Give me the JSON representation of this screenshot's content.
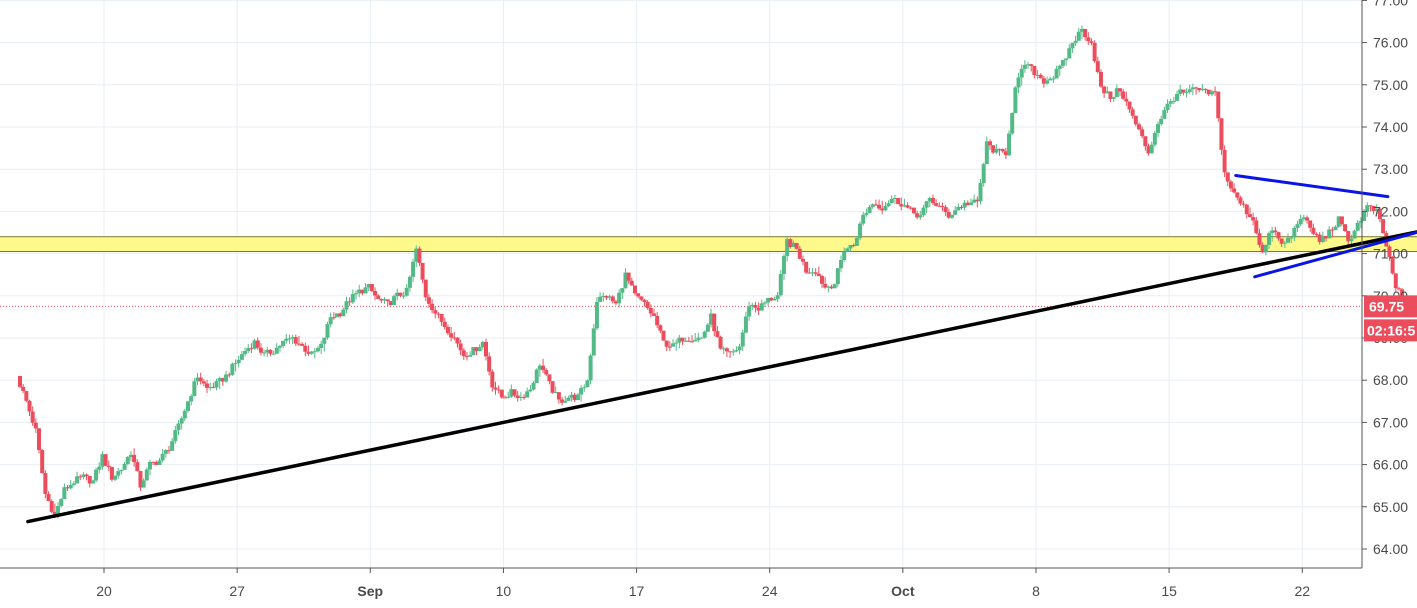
{
  "chart_data": {
    "type": "candlestick",
    "colors": {
      "up": "#53b987",
      "down": "#eb4d5c",
      "grid": "#e8eef3",
      "axis": "#555555",
      "trendline": "#000000",
      "channel": "#0a14e6",
      "zone_fill": "#fdf98b",
      "zone_border": "#7a7a2a",
      "price_line": "#eb4d5c"
    },
    "yaxis": {
      "ylim": [
        63.6,
        77.1
      ],
      "ticks": [
        "64.00",
        "65.00",
        "66.00",
        "67.00",
        "68.00",
        "69.00",
        "70.00",
        "71.00",
        "72.00",
        "73.00",
        "74.00",
        "75.00",
        "76.00",
        "77.00"
      ]
    },
    "xaxis": {
      "ticks": [
        {
          "label": "20",
          "bold": false
        },
        {
          "label": "27",
          "bold": false
        },
        {
          "label": "Sep",
          "bold": true
        },
        {
          "label": "10",
          "bold": false
        },
        {
          "label": "17",
          "bold": false
        },
        {
          "label": "24",
          "bold": false
        },
        {
          "label": "Oct",
          "bold": true
        },
        {
          "label": "8",
          "bold": false
        },
        {
          "label": "15",
          "bold": false
        },
        {
          "label": "22",
          "bold": false
        }
      ]
    },
    "series_close": [
      [
        2.5,
        68.1
      ],
      [
        3.0,
        67.5
      ],
      [
        3.5,
        66.8
      ],
      [
        4.0,
        65.3
      ],
      [
        4.5,
        64.8
      ],
      [
        5.0,
        65.4
      ],
      [
        5.5,
        65.6
      ],
      [
        6.0,
        65.7
      ],
      [
        6.5,
        65.6
      ],
      [
        7.0,
        66.2
      ],
      [
        7.5,
        65.7
      ],
      [
        8.0,
        65.9
      ],
      [
        8.5,
        66.3
      ],
      [
        9.0,
        65.5
      ],
      [
        9.5,
        66.0
      ],
      [
        10.0,
        66.1
      ],
      [
        10.5,
        66.4
      ],
      [
        11.0,
        66.9
      ],
      [
        11.5,
        67.5
      ],
      [
        12.0,
        68.1
      ],
      [
        12.5,
        67.8
      ],
      [
        13.0,
        67.9
      ],
      [
        13.5,
        68.1
      ],
      [
        14.0,
        68.4
      ],
      [
        14.5,
        68.7
      ],
      [
        15.0,
        68.9
      ],
      [
        15.5,
        68.6
      ],
      [
        16.0,
        68.7
      ],
      [
        16.5,
        68.9
      ],
      [
        17.0,
        69.0
      ],
      [
        17.5,
        68.8
      ],
      [
        18.0,
        68.6
      ],
      [
        18.5,
        68.8
      ],
      [
        19.0,
        69.5
      ],
      [
        19.5,
        69.6
      ],
      [
        20.0,
        69.9
      ],
      [
        20.5,
        70.1
      ],
      [
        21.0,
        70.2
      ],
      [
        21.5,
        69.9
      ],
      [
        22.0,
        69.8
      ],
      [
        22.5,
        70.0
      ],
      [
        23.0,
        70.1
      ],
      [
        23.5,
        71.1
      ],
      [
        24.0,
        70.0
      ],
      [
        24.5,
        69.6
      ],
      [
        25.0,
        69.3
      ],
      [
        25.5,
        69.0
      ],
      [
        26.0,
        68.6
      ],
      [
        26.5,
        68.7
      ],
      [
        27.0,
        68.9
      ],
      [
        27.5,
        67.9
      ],
      [
        28.0,
        67.6
      ],
      [
        28.5,
        67.7
      ],
      [
        29.0,
        67.6
      ],
      [
        29.5,
        67.8
      ],
      [
        30.0,
        68.4
      ],
      [
        30.5,
        67.9
      ],
      [
        31.0,
        67.5
      ],
      [
        31.5,
        67.6
      ],
      [
        32.0,
        67.6
      ],
      [
        32.5,
        68.0
      ],
      [
        33.0,
        69.9
      ],
      [
        33.5,
        70.0
      ],
      [
        34.0,
        69.8
      ],
      [
        34.5,
        70.5
      ],
      [
        35.0,
        70.0
      ],
      [
        35.5,
        69.8
      ],
      [
        36.0,
        69.5
      ],
      [
        36.5,
        68.9
      ],
      [
        37.0,
        68.8
      ],
      [
        37.5,
        69.0
      ],
      [
        38.0,
        69.0
      ],
      [
        38.5,
        69.0
      ],
      [
        39.0,
        69.5
      ],
      [
        39.5,
        68.7
      ],
      [
        40.0,
        68.6
      ],
      [
        40.5,
        68.8
      ],
      [
        41.0,
        69.8
      ],
      [
        41.5,
        69.7
      ],
      [
        42.0,
        69.9
      ],
      [
        42.5,
        70.0
      ],
      [
        43.0,
        71.3
      ],
      [
        43.5,
        71.1
      ],
      [
        44.0,
        70.6
      ],
      [
        44.5,
        70.6
      ],
      [
        45.0,
        70.2
      ],
      [
        45.5,
        70.3
      ],
      [
        46.0,
        71.1
      ],
      [
        46.5,
        71.2
      ],
      [
        47.0,
        71.9
      ],
      [
        47.5,
        72.2
      ],
      [
        48.0,
        72.1
      ],
      [
        48.5,
        72.3
      ],
      [
        49.0,
        72.2
      ],
      [
        49.5,
        72.0
      ],
      [
        50.0,
        71.9
      ],
      [
        50.5,
        72.3
      ],
      [
        51.0,
        72.1
      ],
      [
        51.5,
        71.9
      ],
      [
        52.0,
        72.1
      ],
      [
        52.5,
        72.2
      ],
      [
        53.0,
        72.2
      ],
      [
        53.5,
        73.6
      ],
      [
        54.0,
        73.4
      ],
      [
        54.5,
        73.4
      ],
      [
        55.0,
        74.9
      ],
      [
        55.5,
        75.5
      ],
      [
        56.0,
        75.3
      ],
      [
        56.5,
        75.1
      ],
      [
        57.0,
        75.2
      ],
      [
        57.5,
        75.5
      ],
      [
        58.0,
        76.0
      ],
      [
        58.5,
        76.3
      ],
      [
        59.0,
        76.0
      ],
      [
        59.5,
        74.9
      ],
      [
        60.0,
        74.7
      ],
      [
        60.5,
        74.9
      ],
      [
        61.0,
        74.4
      ],
      [
        61.5,
        73.9
      ],
      [
        62.0,
        73.4
      ],
      [
        62.5,
        74.1
      ],
      [
        63.0,
        74.5
      ],
      [
        63.5,
        74.8
      ],
      [
        64.0,
        74.8
      ],
      [
        64.5,
        74.9
      ],
      [
        65.0,
        74.8
      ],
      [
        65.5,
        74.8
      ],
      [
        66.0,
        72.9
      ],
      [
        66.5,
        72.4
      ],
      [
        67.0,
        72.1
      ],
      [
        67.5,
        71.8
      ],
      [
        68.0,
        71.0
      ],
      [
        68.5,
        71.6
      ],
      [
        69.0,
        71.2
      ],
      [
        69.5,
        71.4
      ],
      [
        70.0,
        71.9
      ],
      [
        70.5,
        71.6
      ],
      [
        71.0,
        71.3
      ],
      [
        71.5,
        71.5
      ],
      [
        72.0,
        71.8
      ],
      [
        72.5,
        71.3
      ],
      [
        73.0,
        71.7
      ],
      [
        73.5,
        72.1
      ],
      [
        74.0,
        72.0
      ],
      [
        74.5,
        71.2
      ],
      [
        75.0,
        70.2
      ],
      [
        75.5,
        69.8
      ],
      [
        76.0,
        69.75
      ]
    ],
    "resistance_zone": {
      "x0": 0.0,
      "x1": 77.0,
      "y_low": 71.05,
      "y_high": 71.4
    },
    "trendline": {
      "x0": 3.0,
      "y0": 64.65,
      "x1": 78.0,
      "y1": 71.7
    },
    "channel_upper": {
      "x0": 66.5,
      "y0": 72.85,
      "x1": 74.5,
      "y1": 72.35
    },
    "channel_lower": {
      "x0": 67.5,
      "y0": 70.45,
      "x1": 76.0,
      "y1": 71.5
    },
    "current_price": {
      "value": 69.75,
      "label": "69.75",
      "countdown": "02:16:5"
    }
  }
}
